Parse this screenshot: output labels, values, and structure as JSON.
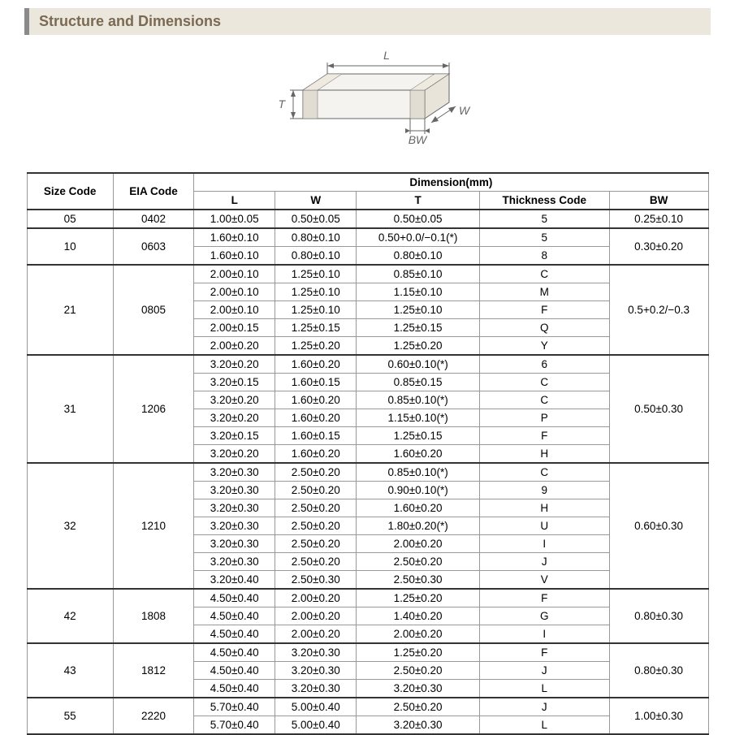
{
  "title": "Structure and Dimensions",
  "diagram": {
    "labels": {
      "L": "L",
      "W": "W",
      "T": "T",
      "BW": "BW"
    },
    "fill": "#f5f3ef",
    "stroke": "#666666"
  },
  "table": {
    "header_group": "Dimension(mm)",
    "columns": [
      "Size Code",
      "EIA Code",
      "L",
      "W",
      "T",
      "Thickness Code",
      "BW"
    ],
    "groups": [
      {
        "size": "05",
        "eia": "0402",
        "bw": "0.25±0.10",
        "rows": [
          {
            "L": "1.00±0.05",
            "W": "0.50±0.05",
            "T": "0.50±0.05",
            "TC": "5"
          }
        ]
      },
      {
        "size": "10",
        "eia": "0603",
        "bw": "0.30±0.20",
        "rows": [
          {
            "L": "1.60±0.10",
            "W": "0.80±0.10",
            "T": "0.50+0.0/−0.1(*)",
            "TC": "5"
          },
          {
            "L": "1.60±0.10",
            "W": "0.80±0.10",
            "T": "0.80±0.10",
            "TC": "8"
          }
        ]
      },
      {
        "size": "21",
        "eia": "0805",
        "bw": "0.5+0.2/−0.3",
        "rows": [
          {
            "L": "2.00±0.10",
            "W": "1.25±0.10",
            "T": "0.85±0.10",
            "TC": "C"
          },
          {
            "L": "2.00±0.10",
            "W": "1.25±0.10",
            "T": "1.15±0.10",
            "TC": "M"
          },
          {
            "L": "2.00±0.10",
            "W": "1.25±0.10",
            "T": "1.25±0.10",
            "TC": "F"
          },
          {
            "L": "2.00±0.15",
            "W": "1.25±0.15",
            "T": "1.25±0.15",
            "TC": "Q"
          },
          {
            "L": "2.00±0.20",
            "W": "1.25±0.20",
            "T": "1.25±0.20",
            "TC": "Y"
          }
        ]
      },
      {
        "size": "31",
        "eia": "1206",
        "bw": "0.50±0.30",
        "rows": [
          {
            "L": "3.20±0.20",
            "W": "1.60±0.20",
            "T": "0.60±0.10(*)",
            "TC": "6"
          },
          {
            "L": "3.20±0.15",
            "W": "1.60±0.15",
            "T": "0.85±0.15",
            "TC": "C"
          },
          {
            "L": "3.20±0.20",
            "W": "1.60±0.20",
            "T": "0.85±0.10(*)",
            "TC": "C"
          },
          {
            "L": "3.20±0.20",
            "W": "1.60±0.20",
            "T": "1.15±0.10(*)",
            "TC": "P"
          },
          {
            "L": "3.20±0.15",
            "W": "1.60±0.15",
            "T": "1.25±0.15",
            "TC": "F"
          },
          {
            "L": "3.20±0.20",
            "W": "1.60±0.20",
            "T": "1.60±0.20",
            "TC": "H"
          }
        ]
      },
      {
        "size": "32",
        "eia": "1210",
        "bw": "0.60±0.30",
        "rows": [
          {
            "L": "3.20±0.30",
            "W": "2.50±0.20",
            "T": "0.85±0.10(*)",
            "TC": "C"
          },
          {
            "L": "3.20±0.30",
            "W": "2.50±0.20",
            "T": "0.90±0.10(*)",
            "TC": "9"
          },
          {
            "L": "3.20±0.30",
            "W": "2.50±0.20",
            "T": "1.60±0.20",
            "TC": "H"
          },
          {
            "L": "3.20±0.30",
            "W": "2.50±0.20",
            "T": "1.80±0.20(*)",
            "TC": "U"
          },
          {
            "L": "3.20±0.30",
            "W": "2.50±0.20",
            "T": "2.00±0.20",
            "TC": "I"
          },
          {
            "L": "3.20±0.30",
            "W": "2.50±0.20",
            "T": "2.50±0.20",
            "TC": "J"
          },
          {
            "L": "3.20±0.40",
            "W": "2.50±0.30",
            "T": "2.50±0.30",
            "TC": "V"
          }
        ]
      },
      {
        "size": "42",
        "eia": "1808",
        "bw": "0.80±0.30",
        "rows": [
          {
            "L": "4.50±0.40",
            "W": "2.00±0.20",
            "T": "1.25±0.20",
            "TC": "F"
          },
          {
            "L": "4.50±0.40",
            "W": "2.00±0.20",
            "T": "1.40±0.20",
            "TC": "G"
          },
          {
            "L": "4.50±0.40",
            "W": "2.00±0.20",
            "T": "2.00±0.20",
            "TC": "I"
          }
        ]
      },
      {
        "size": "43",
        "eia": "1812",
        "bw": "0.80±0.30",
        "rows": [
          {
            "L": "4.50±0.40",
            "W": "3.20±0.30",
            "T": "1.25±0.20",
            "TC": "F"
          },
          {
            "L": "4.50±0.40",
            "W": "3.20±0.30",
            "T": "2.50±0.20",
            "TC": "J"
          },
          {
            "L": "4.50±0.40",
            "W": "3.20±0.30",
            "T": "3.20±0.30",
            "TC": "L"
          }
        ]
      },
      {
        "size": "55",
        "eia": "2220",
        "bw": "1.00±0.30",
        "rows": [
          {
            "L": "5.70±0.40",
            "W": "5.00±0.40",
            "T": "2.50±0.20",
            "TC": "J"
          },
          {
            "L": "5.70±0.40",
            "W": "5.00±0.40",
            "T": "3.20±0.30",
            "TC": "L"
          }
        ]
      }
    ]
  }
}
